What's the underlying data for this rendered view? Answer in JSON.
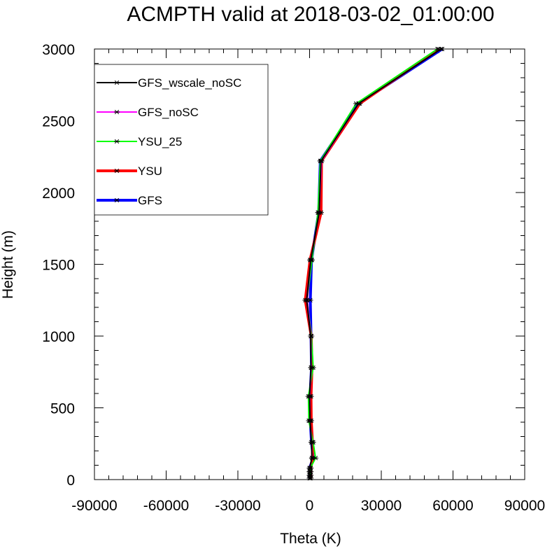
{
  "chart_data": {
    "type": "line",
    "title": "ACMPTH valid at 2018-03-02_01:00:00",
    "xlabel": "Theta (K)",
    "ylabel": "Height (m)",
    "xlim": [
      -90000,
      90000
    ],
    "ylim": [
      0,
      3000
    ],
    "xticks": [
      -90000,
      -60000,
      -30000,
      0,
      30000,
      60000,
      90000
    ],
    "yticks": [
      0,
      500,
      1000,
      1500,
      2000,
      2500,
      3000
    ],
    "xtick_labels": [
      "-90000",
      "-60000",
      "-30000",
      "0",
      "30000",
      "60000",
      "90000"
    ],
    "ytick_labels": [
      "0",
      "500",
      "1000",
      "1500",
      "2000",
      "2500",
      "3000"
    ],
    "grid": false,
    "legend_position": "top-left",
    "marker": "asterisk",
    "series": [
      {
        "name": "GFS",
        "color": "#0000ff",
        "width": 4,
        "points": [
          [
            0,
            10
          ],
          [
            0,
            30
          ],
          [
            0,
            55
          ],
          [
            0,
            80
          ],
          [
            1500,
            150
          ],
          [
            800,
            260
          ],
          [
            300,
            410
          ],
          [
            200,
            580
          ],
          [
            800,
            780
          ],
          [
            600,
            1000
          ],
          [
            300,
            1250
          ],
          [
            800,
            1530
          ],
          [
            3800,
            1860
          ],
          [
            4500,
            2220
          ],
          [
            20500,
            2620
          ],
          [
            55500,
            3000
          ]
        ]
      },
      {
        "name": "YSU",
        "color": "#ff0000",
        "width": 4,
        "points": [
          [
            500,
            10
          ],
          [
            500,
            30
          ],
          [
            500,
            55
          ],
          [
            500,
            80
          ],
          [
            1200,
            150
          ],
          [
            1200,
            260
          ],
          [
            700,
            410
          ],
          [
            600,
            580
          ],
          [
            1000,
            780
          ],
          [
            700,
            1000
          ],
          [
            -1800,
            1250
          ],
          [
            200,
            1530
          ],
          [
            4800,
            1860
          ],
          [
            5000,
            2220
          ],
          [
            21000,
            2620
          ],
          [
            54000,
            3000
          ]
        ]
      },
      {
        "name": "YSU_25",
        "color": "#00ff00",
        "width": 2,
        "points": [
          [
            300,
            10
          ],
          [
            300,
            30
          ],
          [
            300,
            55
          ],
          [
            300,
            80
          ],
          [
            2500,
            150
          ],
          [
            1500,
            260
          ],
          [
            -300,
            410
          ],
          [
            -500,
            580
          ],
          [
            1500,
            780
          ],
          [
            800,
            1000
          ],
          [
            -1000,
            1250
          ],
          [
            1000,
            1530
          ],
          [
            3500,
            1860
          ],
          [
            4500,
            2220
          ],
          [
            19500,
            2620
          ],
          [
            53500,
            3000
          ]
        ]
      },
      {
        "name": "GFS_noSC",
        "color": "#ff00ff",
        "width": 2,
        "points": [
          [
            0,
            10
          ],
          [
            0,
            30
          ],
          [
            0,
            55
          ],
          [
            0,
            80
          ],
          [
            1000,
            150
          ],
          [
            900,
            260
          ],
          [
            200,
            410
          ],
          [
            100,
            580
          ],
          [
            700,
            780
          ],
          [
            600,
            1000
          ],
          [
            -1000,
            1250
          ],
          [
            500,
            1530
          ],
          [
            4000,
            1860
          ],
          [
            5000,
            2220
          ],
          [
            20500,
            2620
          ],
          [
            55000,
            3000
          ]
        ]
      },
      {
        "name": "GFS_wscale_noSC",
        "color": "#000000",
        "width": 2,
        "points": [
          [
            0,
            10
          ],
          [
            0,
            30
          ],
          [
            0,
            55
          ],
          [
            0,
            80
          ],
          [
            1000,
            150
          ],
          [
            800,
            260
          ],
          [
            200,
            410
          ],
          [
            0,
            580
          ],
          [
            600,
            780
          ],
          [
            500,
            1000
          ],
          [
            -1200,
            1250
          ],
          [
            500,
            1530
          ],
          [
            4000,
            1860
          ],
          [
            4800,
            2220
          ],
          [
            20500,
            2620
          ],
          [
            55000,
            3000
          ]
        ]
      }
    ],
    "legend_order": [
      "GFS_wscale_noSC",
      "GFS_noSC",
      "YSU_25",
      "YSU",
      "GFS"
    ]
  }
}
